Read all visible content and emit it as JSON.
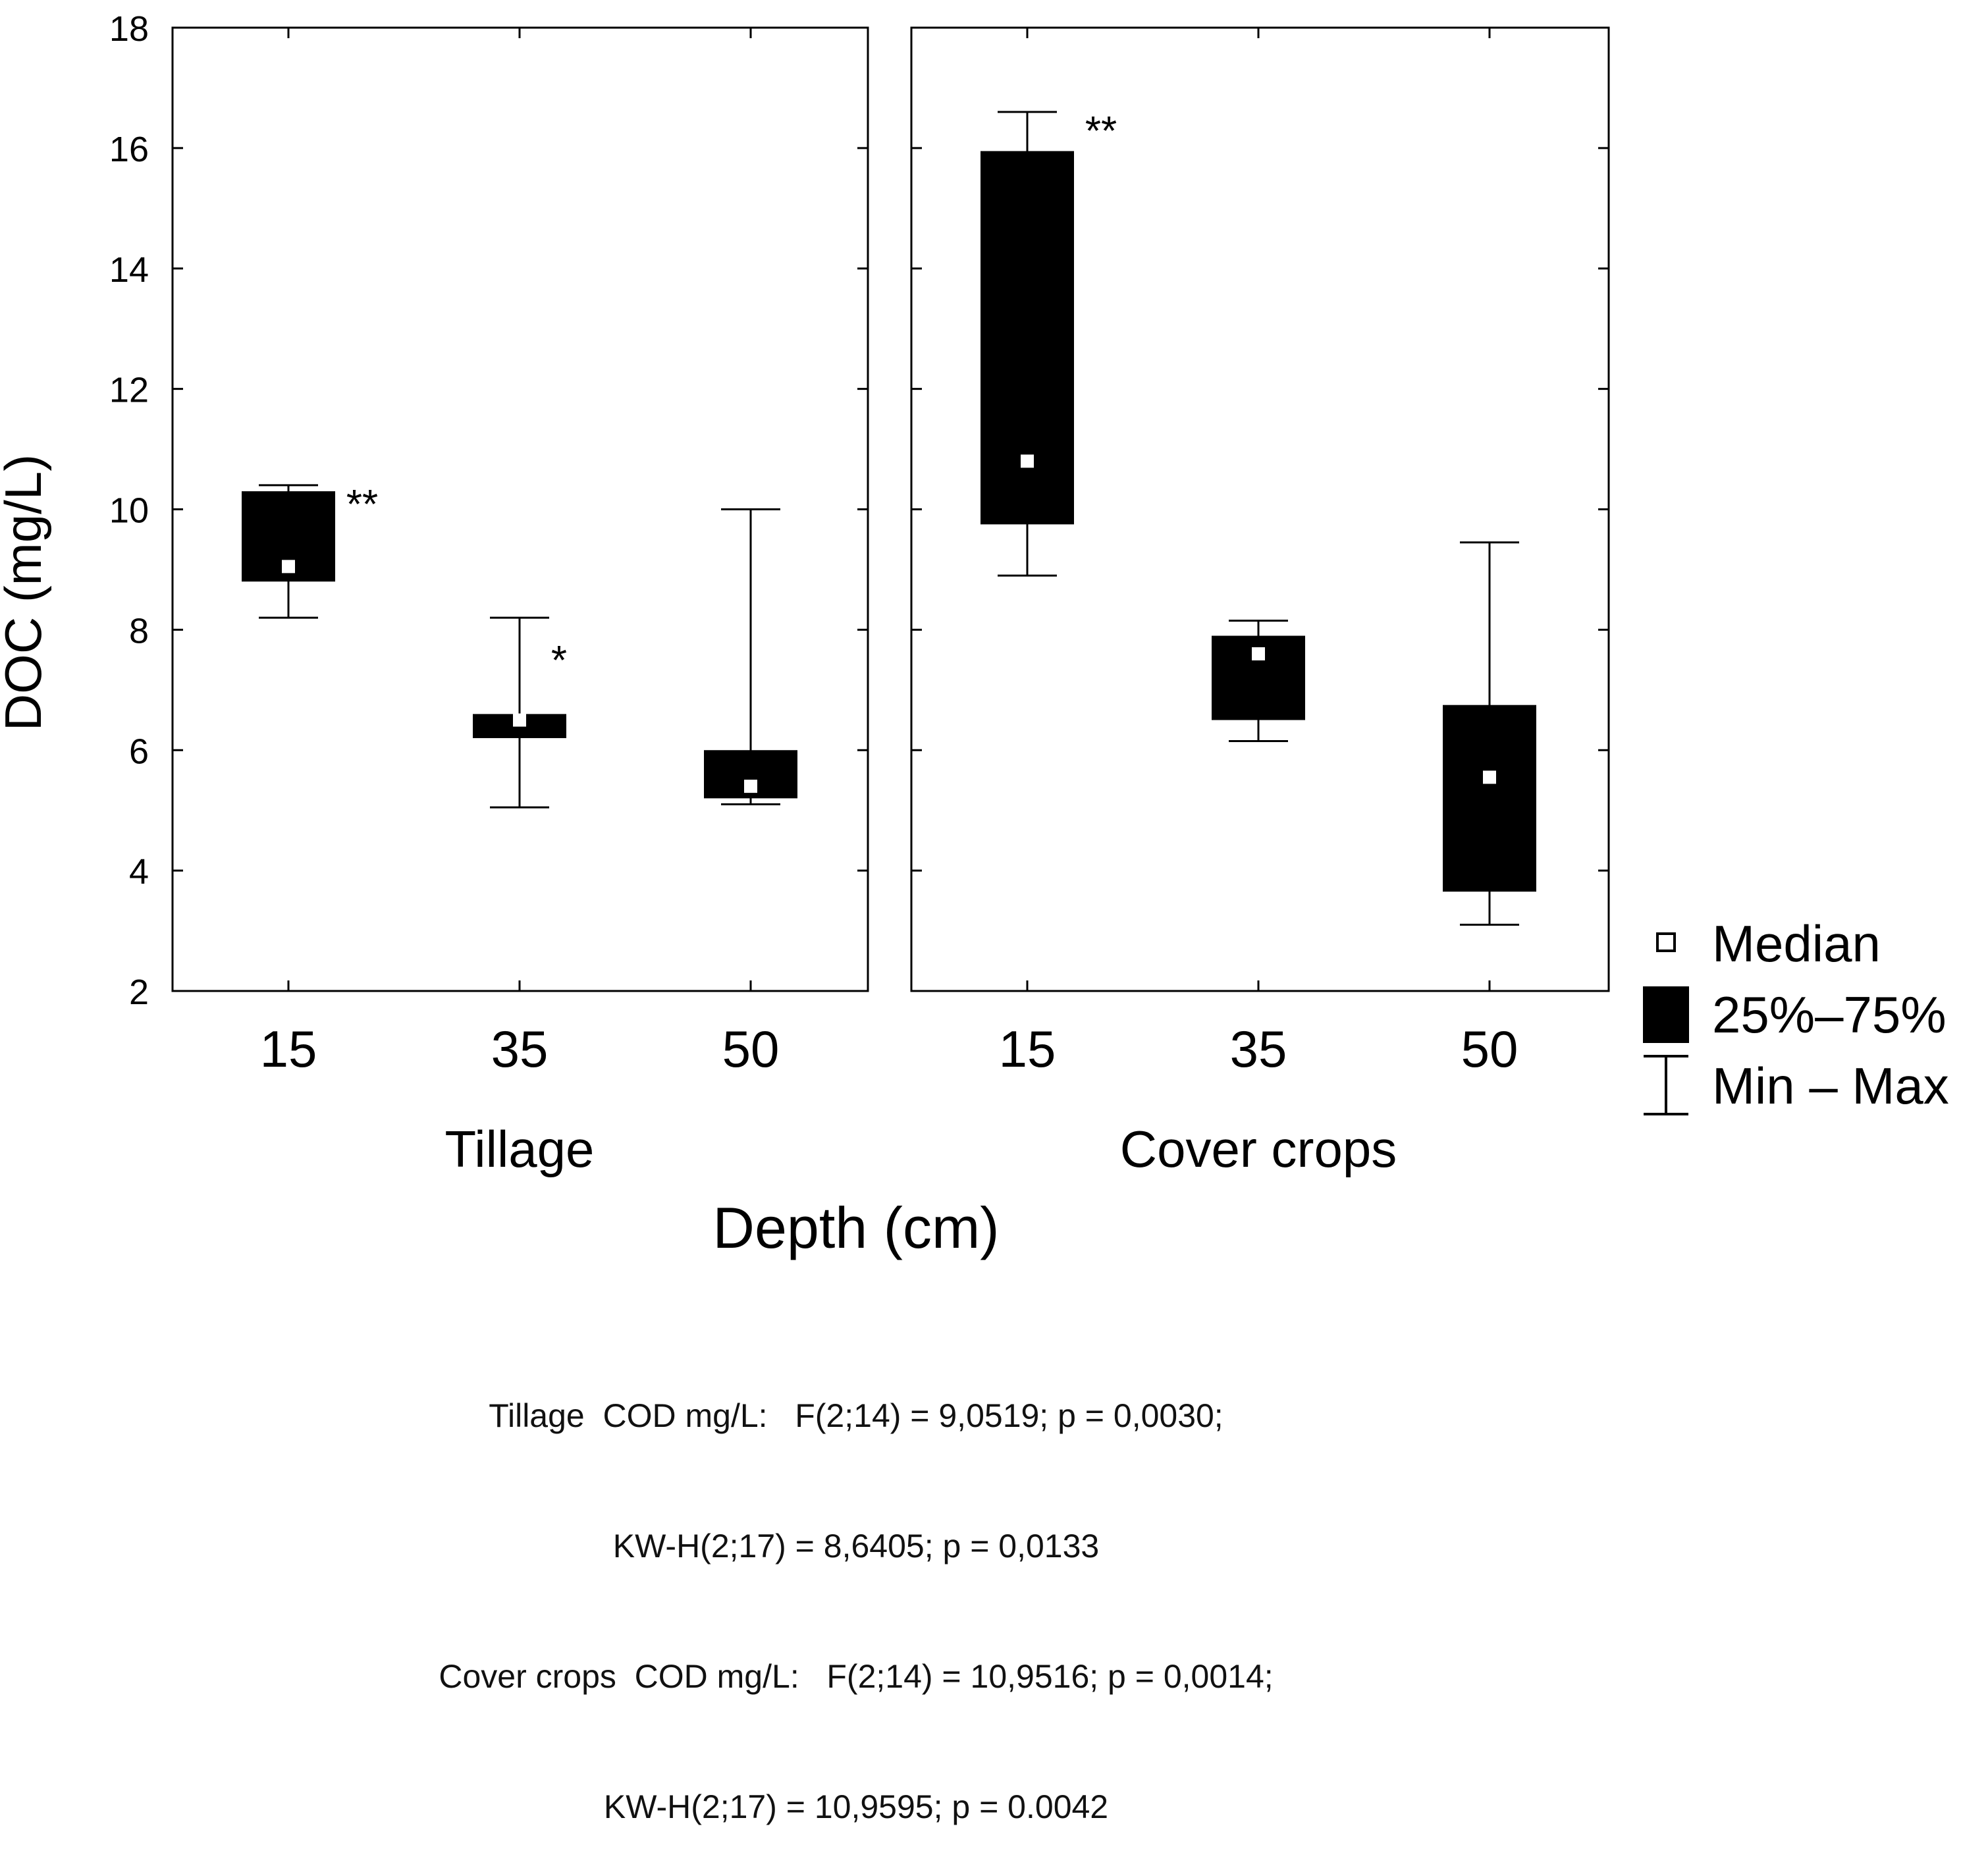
{
  "chart_data": {
    "type": "boxplot",
    "ylabel": "DOC (mg/L)",
    "xlabel": "Depth (cm)",
    "ylim": [
      2,
      18
    ],
    "yticks": [
      2,
      4,
      6,
      8,
      10,
      12,
      14,
      16,
      18
    ],
    "grid": false,
    "legend_position": "right",
    "legend": {
      "median": "Median",
      "box": "25%–75%",
      "whisker": "Min – Max"
    },
    "panels": [
      {
        "name": "Tillage",
        "categories": [
          "15",
          "35",
          "50"
        ],
        "boxes": [
          {
            "min": 8.2,
            "q1": 8.8,
            "median": 9.05,
            "q3": 10.3,
            "max": 10.4,
            "annotation": "**"
          },
          {
            "min": 5.05,
            "q1": 6.2,
            "median": 6.5,
            "q3": 6.6,
            "max": 8.2,
            "annotation": "*"
          },
          {
            "min": 5.1,
            "q1": 5.2,
            "median": 5.4,
            "q3": 6.0,
            "max": 10.0,
            "annotation": ""
          }
        ]
      },
      {
        "name": "Cover crops",
        "categories": [
          "15",
          "35",
          "50"
        ],
        "boxes": [
          {
            "min": 8.9,
            "q1": 9.75,
            "median": 10.8,
            "q3": 15.95,
            "max": 16.6,
            "annotation": "**"
          },
          {
            "min": 6.15,
            "q1": 6.5,
            "median": 7.6,
            "q3": 7.9,
            "max": 8.15,
            "annotation": "*"
          },
          {
            "min": 3.1,
            "q1": 3.65,
            "median": 5.55,
            "q3": 6.75,
            "max": 9.45,
            "annotation": ""
          }
        ]
      }
    ],
    "stats_caption": [
      "Tillage  COD mg/L:   F(2;14) = 9,0519; p = 0,0030;",
      "KW-H(2;17) = 8,6405; p = 0,0133",
      "Cover crops  COD mg/L:   F(2;14) = 10,9516; p = 0,0014;",
      "KW-H(2;17) = 10,9595; p = 0.0042"
    ],
    "colors": {
      "box_fill": "#000000",
      "median_marker": "#ffffff",
      "axis": "#000000",
      "background": "#ffffff"
    }
  }
}
